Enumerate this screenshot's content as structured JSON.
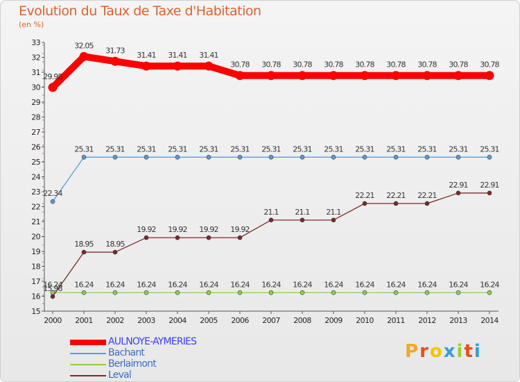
{
  "title": "Evolution du Taux de Taxe d'Habitation",
  "unit_label": "(en %)",
  "logo": {
    "letters": [
      "P",
      "r",
      "o",
      "x",
      "i",
      "t",
      "i"
    ],
    "colors": [
      "#f5a623",
      "#e94e1b",
      "#f5c400",
      "#3a9ad9",
      "#9acd32",
      "#e94e1b",
      "#3a9ad9"
    ]
  },
  "chart_data": {
    "type": "line",
    "x": [
      "2000",
      "2001",
      "2002",
      "2003",
      "2004",
      "2005",
      "2006",
      "2007",
      "2008",
      "2009",
      "2010",
      "2011",
      "2012",
      "2013",
      "2014"
    ],
    "ylim": [
      15,
      33
    ],
    "yticks": [
      15,
      16,
      17,
      18,
      19,
      20,
      21,
      22,
      23,
      24,
      25,
      26,
      27,
      28,
      29,
      30,
      31,
      32,
      33
    ],
    "grid": false,
    "legend_position": "bottom-left",
    "series": [
      {
        "name": "AULNOYE-AYMERIES",
        "color": "#ff0000",
        "label_color": "#3a3aff",
        "values": [
          29.98,
          32.05,
          31.73,
          31.41,
          31.41,
          31.41,
          30.78,
          30.78,
          30.78,
          30.78,
          30.78,
          30.78,
          30.78,
          30.78,
          30.78
        ],
        "labels": [
          "29.98",
          "32.05",
          "31.73",
          "31.41",
          "31.41",
          "31.41",
          "30.78",
          "30.78",
          "30.78",
          "30.78",
          "30.78",
          "30.78",
          "30.78",
          "30.78",
          "30.78"
        ],
        "emphasis": true
      },
      {
        "name": "Bachant",
        "color": "#5b9bd5",
        "label_color": "#3a6fc0",
        "values": [
          22.34,
          25.31,
          25.31,
          25.31,
          25.31,
          25.31,
          25.31,
          25.31,
          25.31,
          25.31,
          25.31,
          25.31,
          25.31,
          25.31,
          25.31
        ],
        "labels": [
          "22.34",
          "25.31",
          "25.31",
          "25.31",
          "25.31",
          "25.31",
          "25.31",
          "25.31",
          "25.31",
          "25.31",
          "25.31",
          "25.31",
          "25.31",
          "25.31",
          "25.31"
        ],
        "emphasis": false
      },
      {
        "name": "Berlaimont",
        "color": "#8fd14f",
        "label_color": "#3a6fc0",
        "values": [
          16.24,
          16.24,
          16.24,
          16.24,
          16.24,
          16.24,
          16.24,
          16.24,
          16.24,
          16.24,
          16.24,
          16.24,
          16.24,
          16.24,
          16.24
        ],
        "labels": [
          "16.24",
          "16.24",
          "16.24",
          "16.24",
          "16.24",
          "16.24",
          "16.24",
          "16.24",
          "16.24",
          "16.24",
          "16.24",
          "16.24",
          "16.24",
          "16.24",
          "16.24"
        ],
        "emphasis": false
      },
      {
        "name": "Leval",
        "color": "#7a2a2a",
        "label_color": "#3a6fc0",
        "values": [
          15.98,
          18.95,
          18.95,
          19.92,
          19.92,
          19.92,
          19.92,
          21.1,
          21.1,
          21.1,
          22.21,
          22.21,
          22.21,
          22.91,
          22.91
        ],
        "labels": [
          "15.98",
          "18.95",
          "18.95",
          "19.92",
          "19.92",
          "19.92",
          "19.92",
          "21.1",
          "21.1",
          "21.1",
          "22.21",
          "22.21",
          "22.21",
          "22.91",
          "22.91"
        ],
        "emphasis": false
      }
    ]
  }
}
